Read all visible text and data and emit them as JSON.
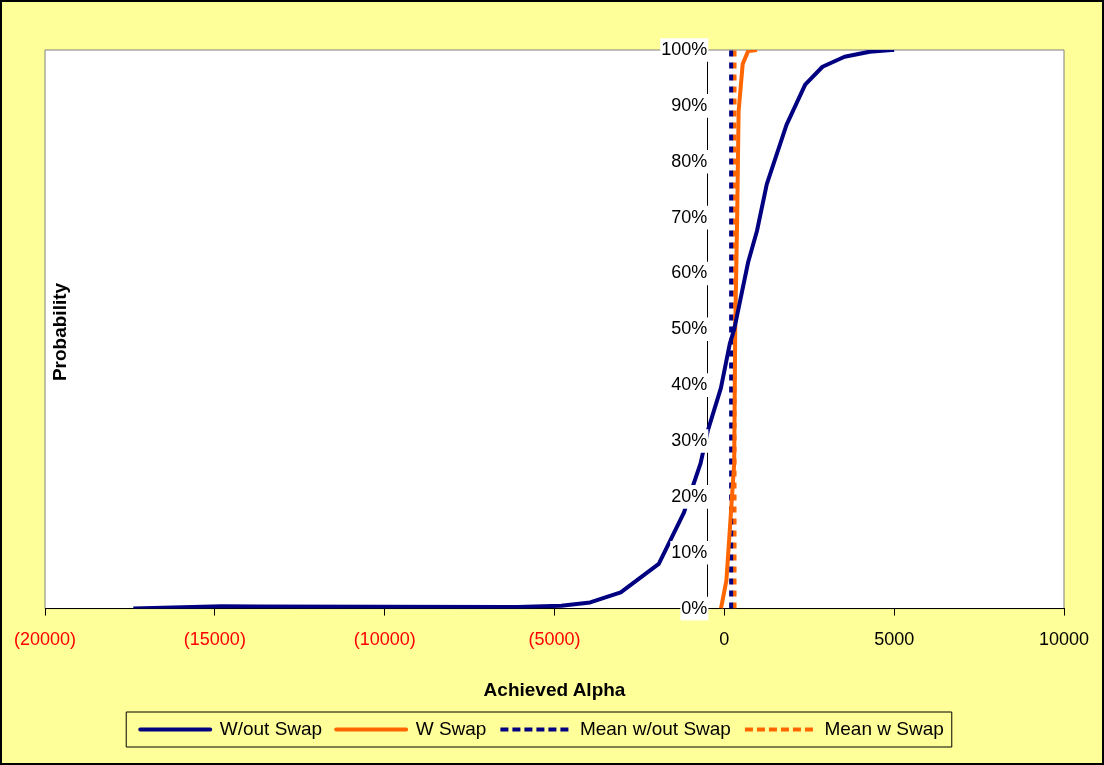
{
  "chart_data": {
    "type": "line",
    "xlabel": "Achieved Alpha",
    "ylabel": "Probability",
    "xlim": [
      -20000,
      10000
    ],
    "xticks": [
      {
        "value": -20000,
        "label": "(20000)"
      },
      {
        "value": -15000,
        "label": "(15000)"
      },
      {
        "value": -10000,
        "label": "(10000)"
      },
      {
        "value": -5000,
        "label": "(5000)"
      },
      0,
      5000,
      10000
    ],
    "ylim": [
      0,
      100
    ],
    "yticks": [
      {
        "value": 0,
        "label": "0%"
      },
      {
        "value": 10,
        "label": "10%"
      },
      {
        "value": 20,
        "label": "20%"
      },
      {
        "value": 30,
        "label": "30%"
      },
      {
        "value": 40,
        "label": "40%"
      },
      {
        "value": 50,
        "label": "50%"
      },
      {
        "value": 60,
        "label": "60%"
      },
      {
        "value": 70,
        "label": "70%"
      },
      {
        "value": 80,
        "label": "80%"
      },
      {
        "value": 90,
        "label": "90%"
      },
      {
        "value": 100,
        "label": "100%"
      }
    ],
    "grid": false,
    "legend": "bottom",
    "marker": "none",
    "line_style": "solid",
    "series": [
      {
        "name": "W/out Swap",
        "color": "#000080",
        "x": [
          -17400,
          -14800,
          -6100,
          -4800,
          -3950,
          -3050,
          -1930,
          -1190,
          -700,
          -480,
          -100,
          160,
          290,
          700,
          960,
          1250,
          1830,
          2380,
          2890,
          3540,
          4280,
          4920,
          5000
        ],
        "values": [
          0,
          0.4,
          0.3,
          0.5,
          1.1,
          2.9,
          8,
          17.2,
          26,
          32,
          39.5,
          47.4,
          50,
          62,
          67.6,
          76,
          86.6,
          93.8,
          97,
          98.8,
          99.7,
          100,
          100
        ]
      },
      {
        "name": "W Swap",
        "color": "#ff6600",
        "x": [
          -100,
          60,
          160,
          290,
          320,
          380,
          420,
          540,
          700,
          960
        ],
        "values": [
          0,
          5,
          14,
          26,
          50,
          71,
          89,
          97.5,
          99.8,
          100
        ]
      }
    ],
    "ref_lines": [
      {
        "axis": "x",
        "value": 200,
        "label": "Mean w/out Swap",
        "color": "#000080",
        "line_style": "dashed"
      },
      {
        "axis": "x",
        "value": 300,
        "label": "Mean w Swap",
        "color": "#ff6600",
        "line_style": "dashed"
      }
    ]
  }
}
